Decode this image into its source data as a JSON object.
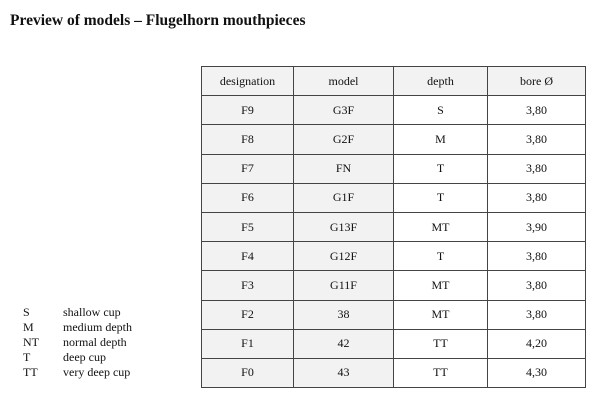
{
  "title": "Preview of models – Flugelhorn mouthpieces",
  "table": {
    "headers": [
      "designation",
      "model",
      "depth",
      "bore Ø"
    ],
    "rows": [
      [
        "F9",
        "G3F",
        "S",
        "3,80"
      ],
      [
        "F8",
        "G2F",
        "M",
        "3,80"
      ],
      [
        "F7",
        "FN",
        "T",
        "3,80"
      ],
      [
        "F6",
        "G1F",
        "T",
        "3,80"
      ],
      [
        "F5",
        "G13F",
        "MT",
        "3,90"
      ],
      [
        "F4",
        "G12F",
        "T",
        "3,80"
      ],
      [
        "F3",
        "G11F",
        "MT",
        "3,80"
      ],
      [
        "F2",
        "38",
        "MT",
        "3,80"
      ],
      [
        "F1",
        "42",
        "TT",
        "4,20"
      ],
      [
        "F0",
        "43",
        "TT",
        "4,30"
      ]
    ]
  },
  "legend": [
    {
      "key": "S",
      "desc": "shallow cup"
    },
    {
      "key": "M",
      "desc": "medium depth"
    },
    {
      "key": "NT",
      "desc": "normal depth"
    },
    {
      "key": "T",
      "desc": "deep cup"
    },
    {
      "key": "TT",
      "desc": "very deep cup"
    }
  ],
  "colors": {
    "shaded_cell": "#f2f2f2",
    "border": "#444444"
  }
}
